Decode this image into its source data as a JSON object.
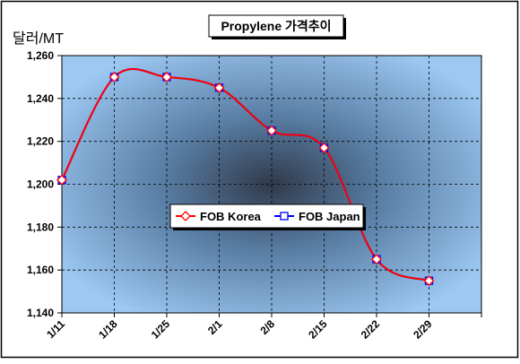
{
  "chart_data": {
    "type": "line",
    "title": "Propylene 가격추이",
    "ylabel": "달러/MT",
    "xlabel": "",
    "categories": [
      "1/11",
      "1/18",
      "1/25",
      "2/1",
      "2/8",
      "2/15",
      "2/22",
      "2/29"
    ],
    "ylim": [
      1140,
      1260
    ],
    "yticks": [
      1140,
      1160,
      1180,
      1200,
      1220,
      1240,
      1260
    ],
    "ytick_labels": [
      "1,140",
      "1,160",
      "1,180",
      "1,200",
      "1,220",
      "1,240",
      "1,260"
    ],
    "grid": true,
    "legend_position": "center",
    "series": [
      {
        "name": "FOB Korea",
        "color": "#ff0000",
        "marker": "diamond",
        "values": [
          1202,
          1250,
          1250,
          1245,
          1225,
          1217,
          1165,
          1155
        ]
      },
      {
        "name": "FOB Japan",
        "color": "#0000ff",
        "marker": "square",
        "values": [
          1202,
          1250,
          1250,
          1245,
          1225,
          1217,
          1165,
          1155
        ]
      }
    ]
  }
}
